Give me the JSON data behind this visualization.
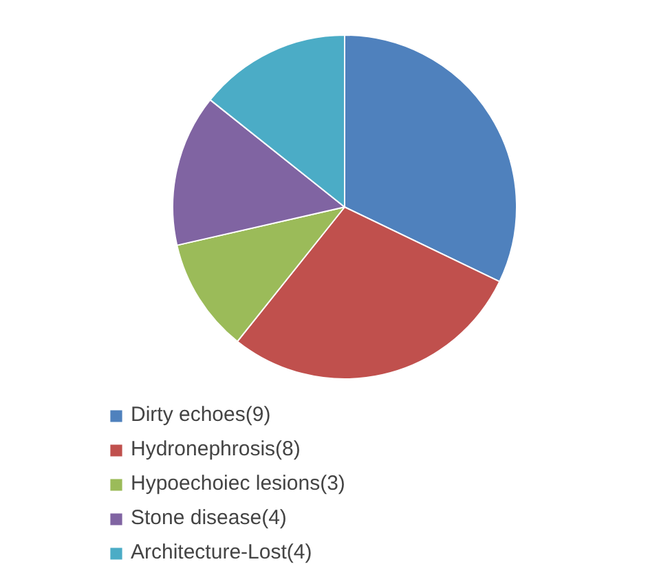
{
  "chart_data": {
    "type": "pie",
    "categories": [
      "Dirty echoes(9)",
      "Hydronephrosis(8)",
      "Hypoechoiec lesions(3)",
      "Stone disease(4)",
      "Architecture-Lost(4)"
    ],
    "values": [
      9,
      8,
      3,
      4,
      4
    ],
    "colors": [
      "#4f81bd",
      "#c0504d",
      "#9bbb59",
      "#8064a2",
      "#4bacc6"
    ],
    "legend": "bottom"
  }
}
